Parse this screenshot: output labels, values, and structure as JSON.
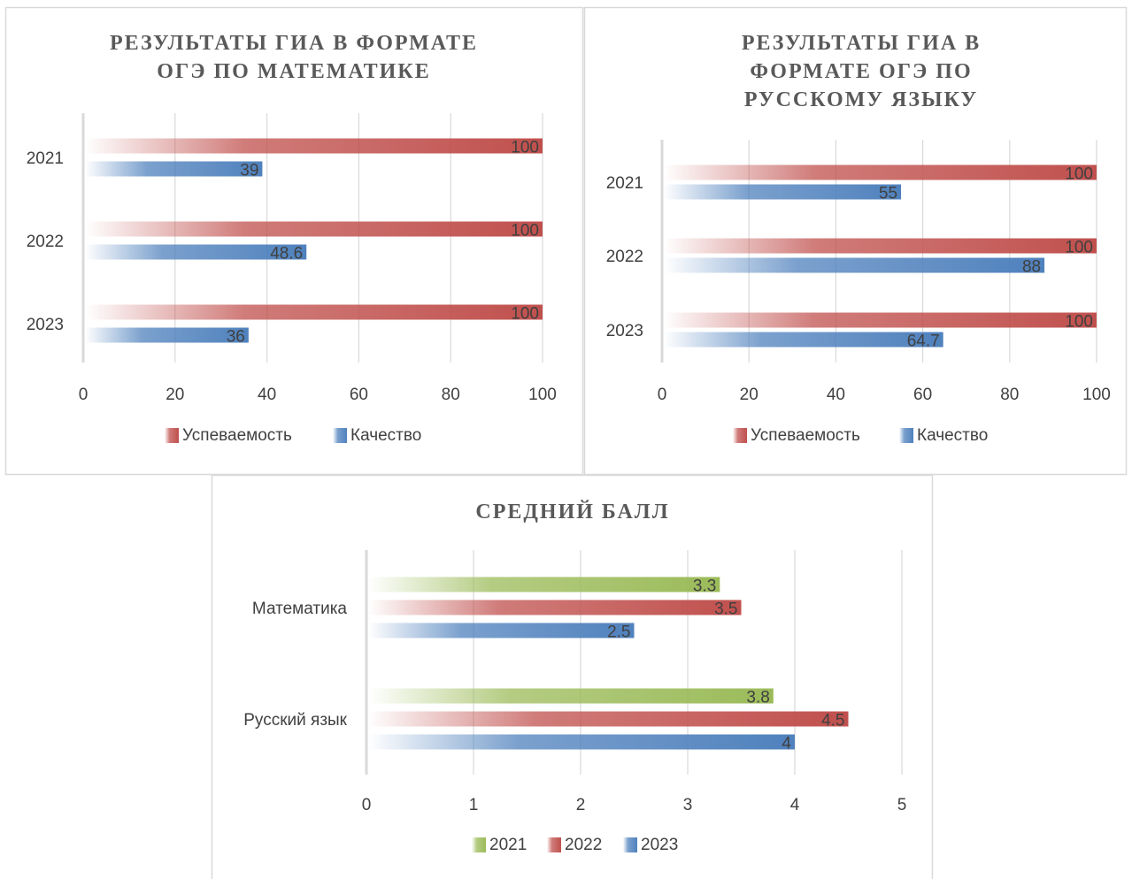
{
  "colors": {
    "usp": "#C0504D",
    "kach": "#4F81BD",
    "y2021": "#9BBB59",
    "y2022": "#C0504D",
    "y2023": "#4F81BD",
    "grid": "#D9D9D9",
    "border": "#D9D9D9"
  },
  "chart_data": [
    {
      "type": "bar",
      "orientation": "horizontal",
      "title": [
        "РЕЗУЛЬТАТЫ ГИА В ФОРМАТЕ",
        "ОГЭ ПО МАТЕМАТИКЕ"
      ],
      "categories": [
        "2021",
        "2022",
        "2023"
      ],
      "series": [
        {
          "name": "Успеваемость",
          "color": "#C0504D",
          "values": [
            100,
            100,
            100
          ],
          "labels": [
            "100",
            "100",
            "100"
          ]
        },
        {
          "name": "Качество",
          "color": "#4F81BD",
          "values": [
            39,
            48.6,
            36
          ],
          "labels": [
            "39",
            "48.6",
            "36"
          ]
        }
      ],
      "xlim": [
        0,
        100
      ],
      "xticks": [
        "0",
        "20",
        "40",
        "60",
        "80",
        "100"
      ],
      "grid": true,
      "legend_position": "bottom"
    },
    {
      "type": "bar",
      "orientation": "horizontal",
      "title": [
        "РЕЗУЛЬТАТЫ ГИА В",
        "ФОРМАТЕ ОГЭ ПО",
        "РУССКОМУ ЯЗЫКУ"
      ],
      "categories": [
        "2021",
        "2022",
        "2023"
      ],
      "series": [
        {
          "name": "Успеваемость",
          "color": "#C0504D",
          "values": [
            100,
            100,
            100
          ],
          "labels": [
            "100",
            "100",
            "100"
          ]
        },
        {
          "name": "Качество",
          "color": "#4F81BD",
          "values": [
            55,
            88,
            64.7
          ],
          "labels": [
            "55",
            "88",
            "64.7"
          ]
        }
      ],
      "xlim": [
        0,
        100
      ],
      "xticks": [
        "0",
        "20",
        "40",
        "60",
        "80",
        "100"
      ],
      "grid": true,
      "legend_position": "bottom"
    },
    {
      "type": "bar",
      "orientation": "horizontal",
      "title": [
        "СРЕДНИЙ БАЛЛ"
      ],
      "categories": [
        "Математика",
        "Русский язык"
      ],
      "series": [
        {
          "name": "2021",
          "color": "#9BBB59",
          "values": [
            3.3,
            3.8
          ],
          "labels": [
            "3.3",
            "3.8"
          ]
        },
        {
          "name": "2022",
          "color": "#C0504D",
          "values": [
            3.5,
            4.5
          ],
          "labels": [
            "3.5",
            "4.5"
          ]
        },
        {
          "name": "2023",
          "color": "#4F81BD",
          "values": [
            2.5,
            4
          ],
          "labels": [
            "2.5",
            "4"
          ]
        }
      ],
      "xlim": [
        0,
        5
      ],
      "xticks": [
        "0",
        "1",
        "2",
        "3",
        "4",
        "5"
      ],
      "grid": true,
      "legend_position": "bottom"
    }
  ]
}
